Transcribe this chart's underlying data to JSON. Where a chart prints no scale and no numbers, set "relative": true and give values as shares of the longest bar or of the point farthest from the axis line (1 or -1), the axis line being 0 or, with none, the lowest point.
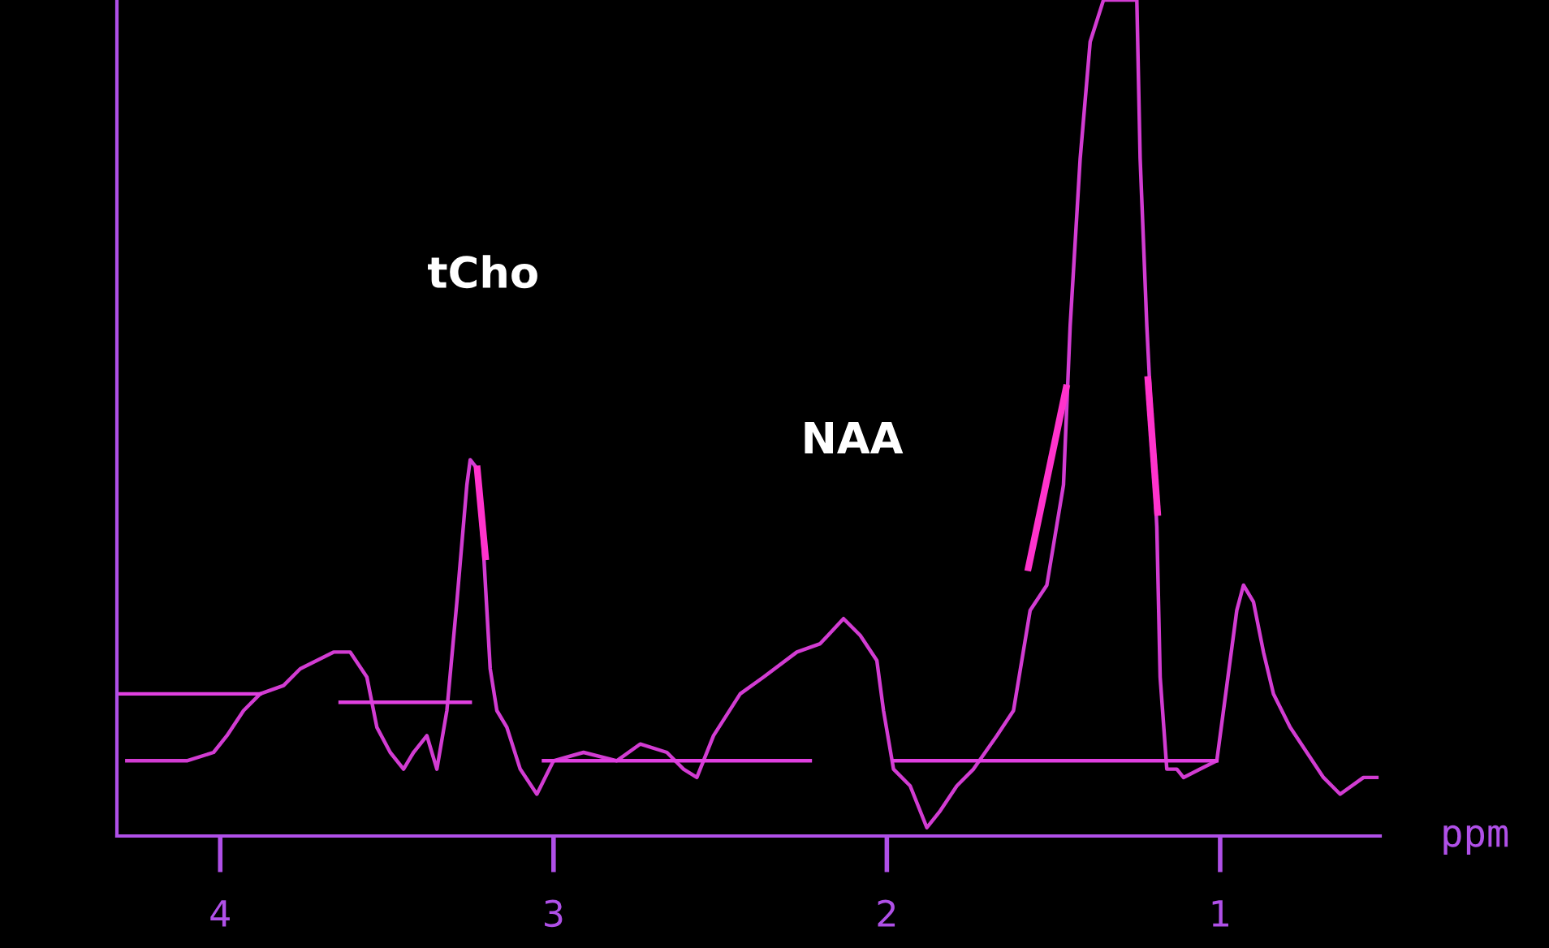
{
  "chart_data": {
    "type": "line",
    "relative": true,
    "xlabel": "ppm",
    "xlim": [
      4.31,
      0.52
    ],
    "xticks": [
      4,
      3,
      2,
      1
    ],
    "grid": false,
    "legend": false,
    "marker": "none",
    "line_style": "solid",
    "series": [
      {
        "color": "#d23cd2",
        "x": [
          4.28,
          4.17,
          4.1,
          4.02,
          3.98,
          3.93,
          3.88,
          3.81,
          3.76,
          3.71,
          3.66,
          3.61,
          3.56,
          3.53,
          3.49,
          3.45,
          3.42,
          3.38,
          3.35,
          3.32,
          3.29,
          3.26,
          3.25,
          3.23,
          3.21,
          3.19,
          3.17,
          3.14,
          3.1,
          3.05,
          3.0,
          2.91,
          2.81,
          2.74,
          2.66,
          2.61,
          2.57,
          2.52,
          2.44,
          2.37,
          2.27,
          2.2,
          2.13,
          2.08,
          2.03,
          2.01,
          1.98,
          1.93,
          1.88,
          1.84,
          1.79,
          1.74,
          1.67,
          1.62,
          1.57,
          1.52,
          1.47,
          1.45,
          1.42,
          1.39,
          1.35,
          1.25,
          1.24,
          1.22,
          1.19,
          1.18,
          1.16,
          1.13,
          1.11,
          1.06,
          1.01,
          0.98,
          0.95,
          0.93,
          0.9,
          0.87,
          0.84,
          0.79,
          0.74,
          0.69,
          0.64,
          0.57,
          0.53
        ],
        "values": [
          0.09,
          0.09,
          0.09,
          0.1,
          0.12,
          0.15,
          0.17,
          0.18,
          0.2,
          0.21,
          0.22,
          0.22,
          0.19,
          0.13,
          0.1,
          0.08,
          0.1,
          0.12,
          0.08,
          0.15,
          0.28,
          0.42,
          0.45,
          0.44,
          0.34,
          0.2,
          0.15,
          0.13,
          0.08,
          0.05,
          0.09,
          0.1,
          0.09,
          0.11,
          0.1,
          0.08,
          0.07,
          0.12,
          0.17,
          0.19,
          0.22,
          0.23,
          0.26,
          0.24,
          0.21,
          0.15,
          0.08,
          0.06,
          0.01,
          0.03,
          0.06,
          0.08,
          0.12,
          0.15,
          0.27,
          0.3,
          0.42,
          0.61,
          0.81,
          0.95,
          1,
          1,
          0.81,
          0.61,
          0.37,
          0.19,
          0.08,
          0.08,
          0.07,
          0.08,
          0.09,
          0.18,
          0.27,
          0.3,
          0.28,
          0.22,
          0.17,
          0.13,
          0.1,
          0.07,
          0.05,
          0.07,
          0.07
        ]
      },
      {
        "color": "#e040e0",
        "x": [
          4.31,
          3.88,
          null,
          3.64,
          3.25,
          null,
          3.03,
          2.23,
          null,
          1.98,
          1.01
        ],
        "values": [
          0.17,
          0.17,
          null,
          0.16,
          0.16,
          null,
          0.09,
          0.09,
          null,
          0.09,
          0.09
        ]
      }
    ],
    "annotations": [
      "tCho",
      "NAA"
    ]
  }
}
